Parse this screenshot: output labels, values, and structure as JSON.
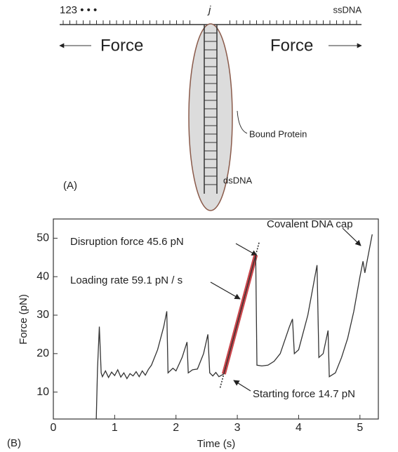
{
  "diagram": {
    "sites": "123 • • •",
    "site_j": "j",
    "ssdna": "ssDNA",
    "force_left": "Force",
    "force_right": "Force",
    "protein": "Bound Protein",
    "dsdna": "dsDNA",
    "panel": "(A)"
  },
  "chart_data": {
    "type": "line",
    "panel": "(B)",
    "x_label": "Time (s)",
    "y_label": "Force (pN)",
    "xlim": [
      0,
      5.3
    ],
    "ylim": [
      3,
      55
    ],
    "xticks": [
      0,
      1,
      2,
      3,
      4,
      5
    ],
    "yticks": [
      10,
      20,
      30,
      40,
      50
    ],
    "color": "#333333",
    "x": [
      0.7,
      0.72,
      0.75,
      0.78,
      0.8,
      0.85,
      0.9,
      0.95,
      1.0,
      1.05,
      1.1,
      1.15,
      1.2,
      1.25,
      1.3,
      1.35,
      1.4,
      1.45,
      1.5,
      1.55,
      1.6,
      1.7,
      1.8,
      1.85,
      1.87,
      1.95,
      2.0,
      2.1,
      2.18,
      2.2,
      2.27,
      2.35,
      2.45,
      2.52,
      2.55,
      2.6,
      2.65,
      2.7,
      2.78,
      3.3,
      3.32,
      3.4,
      3.5,
      3.6,
      3.7,
      3.85,
      3.9,
      3.93,
      4.0,
      4.15,
      4.3,
      4.33,
      4.4,
      4.48,
      4.5,
      4.6,
      4.7,
      4.8,
      4.9,
      5.0,
      5.05,
      5.08,
      5.2
    ],
    "values": [
      3,
      16,
      27,
      15,
      14,
      15.5,
      13.8,
      15.2,
      14.3,
      15.8,
      13.9,
      15,
      13.5,
      14.8,
      14.2,
      15.3,
      14,
      15.5,
      14.4,
      15.9,
      17,
      21,
      27,
      31,
      15,
      16.2,
      15.5,
      19,
      23,
      15,
      15.8,
      16,
      20,
      25,
      15,
      14.2,
      15.1,
      14,
      14.7,
      45.6,
      17,
      16.8,
      17,
      18,
      20,
      27,
      29,
      20,
      21,
      30,
      43,
      19,
      20,
      26,
      14,
      15,
      19,
      24,
      31,
      40,
      44,
      41,
      51
    ],
    "fit_line": {
      "x": [
        2.78,
        3.3
      ],
      "values": [
        14.7,
        45.6
      ],
      "color": "#c0262d"
    },
    "annotations": [
      "Disruption force 45.6 pN",
      "Loading rate 59.1 pN / s",
      "Covalent DNA cap",
      "Starting force 14.7 pN"
    ]
  }
}
